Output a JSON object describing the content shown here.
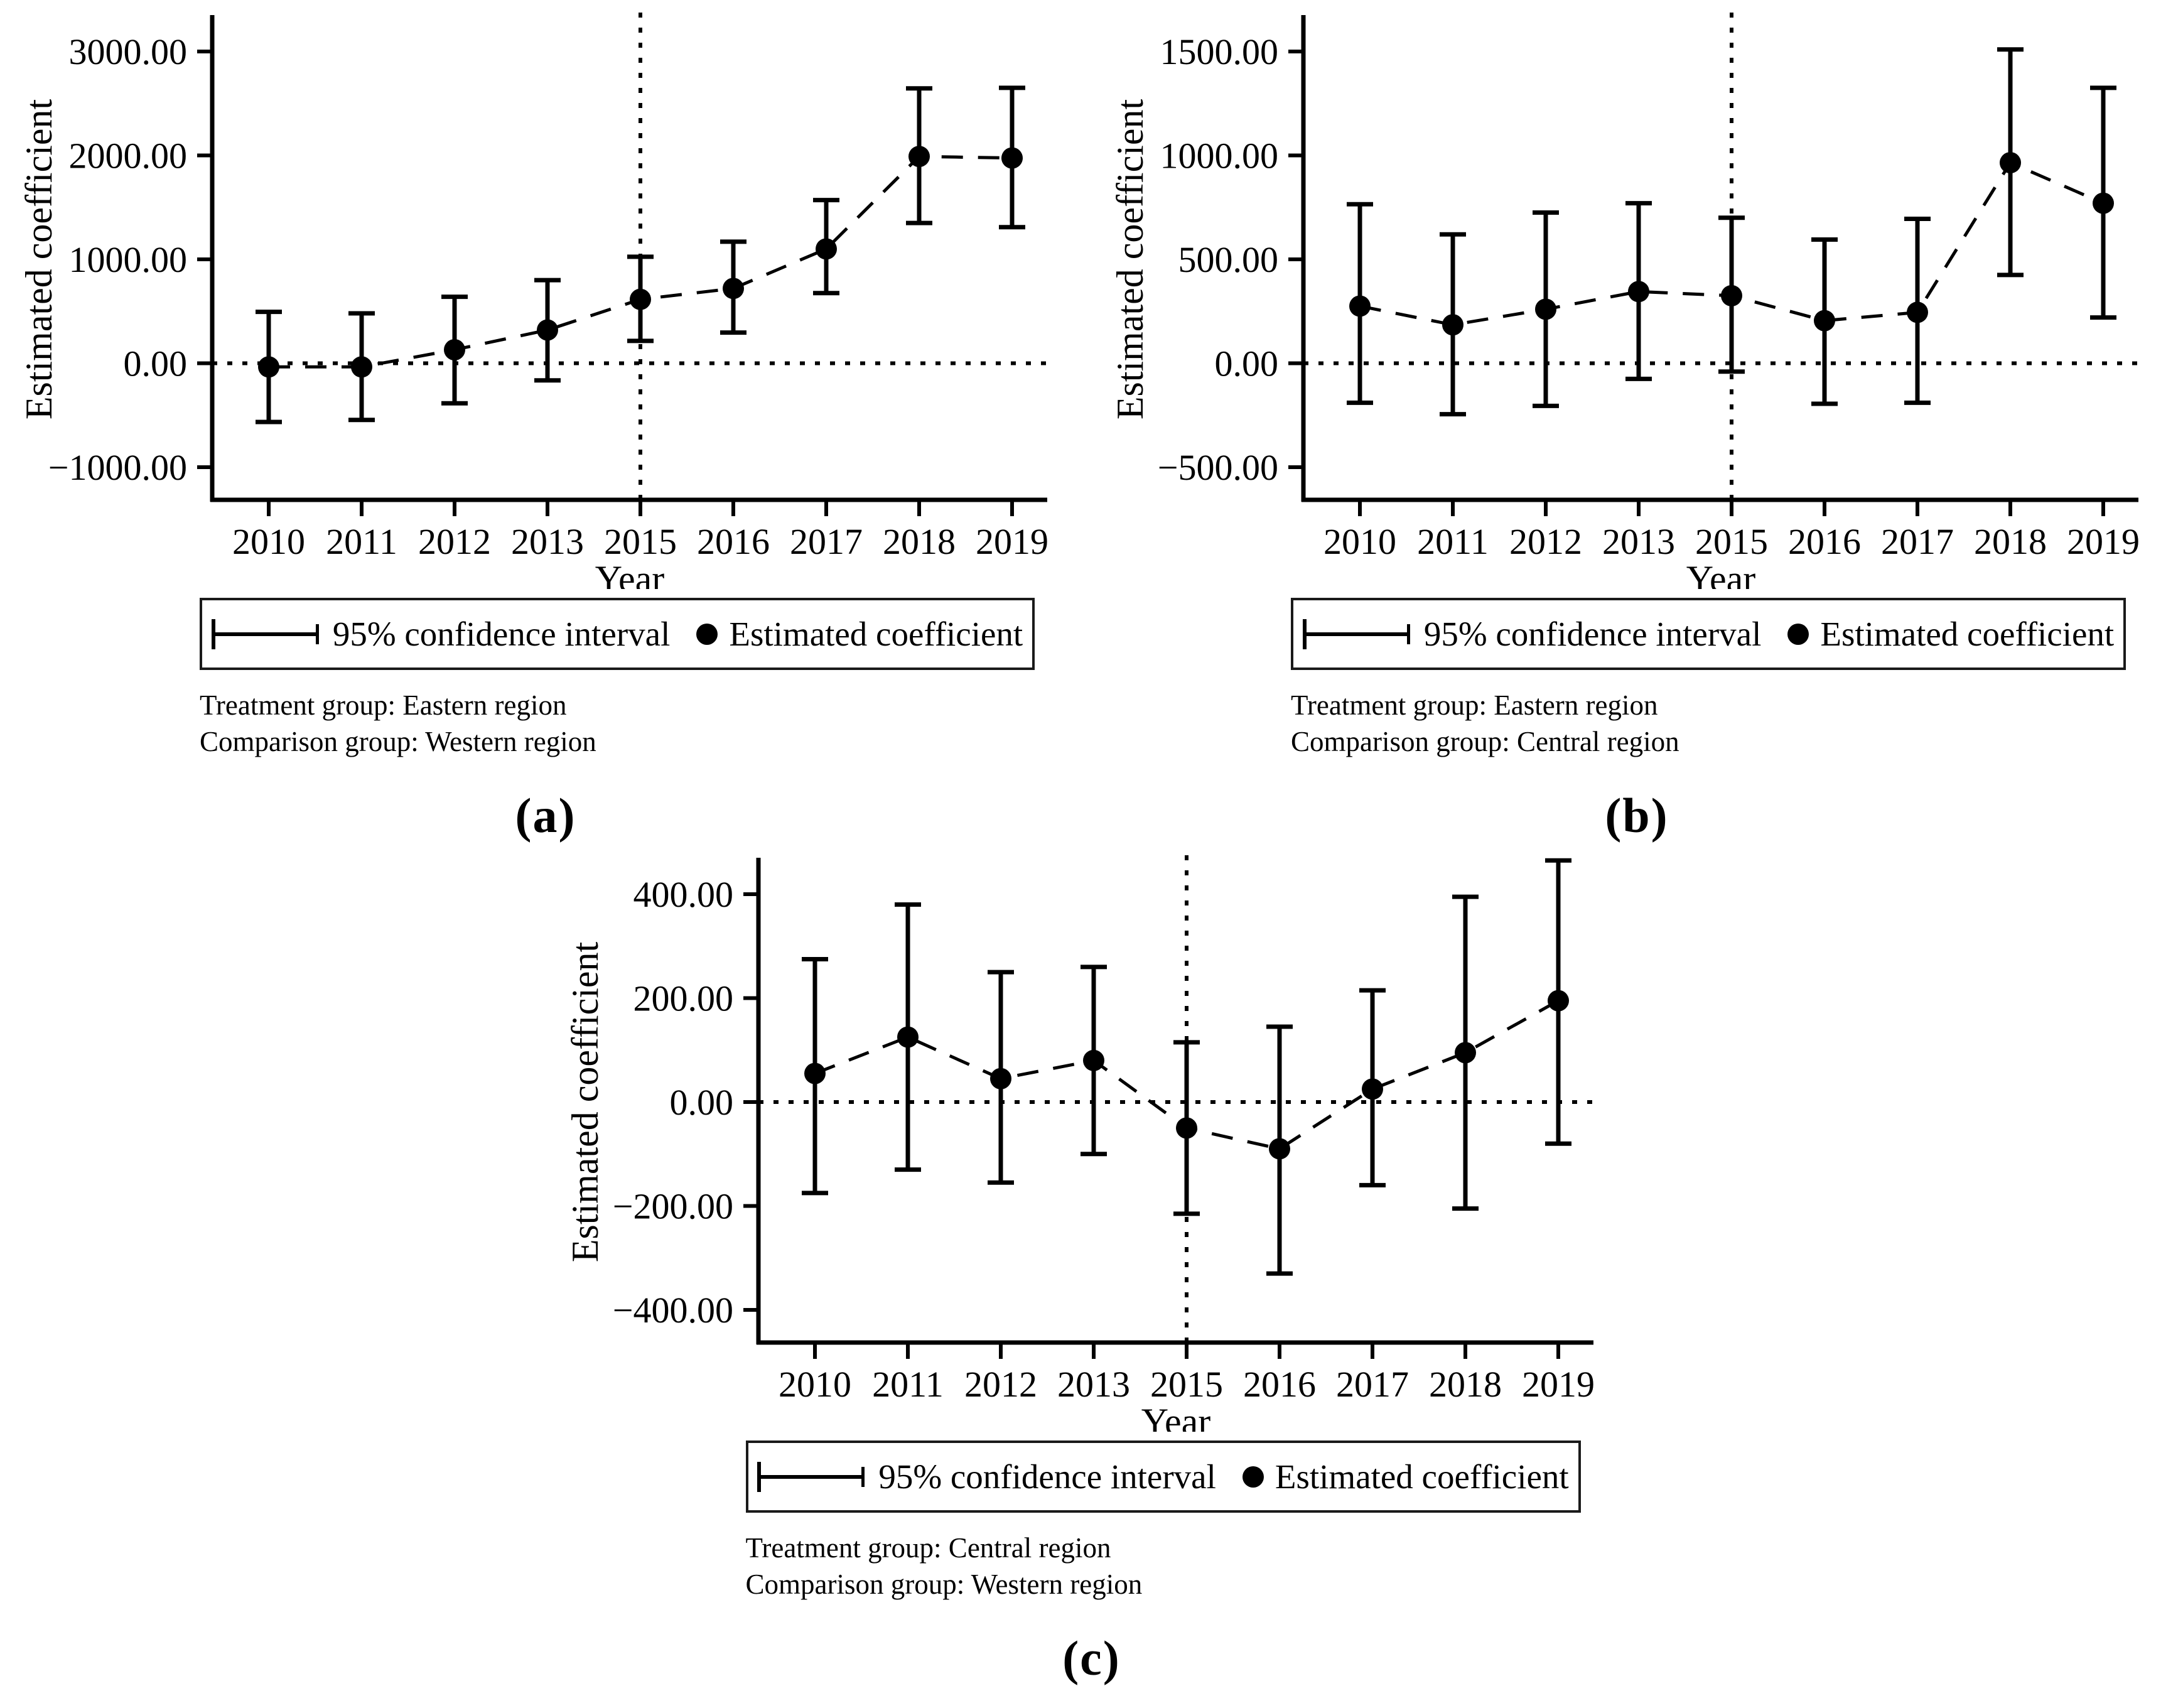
{
  "figure": {
    "legend": {
      "ci_label": "95% confidence interval",
      "estimate_label": "Estimated coefficient"
    }
  },
  "chart_data": {
    "type": "line",
    "style": "dashed line with point estimates and 95% CI error bars",
    "grid": false,
    "shared_categories": [
      "2010",
      "2011",
      "2012",
      "2013",
      "2015",
      "2016",
      "2017",
      "2018",
      "2019"
    ],
    "panels": [
      {
        "panel_label": "(a)",
        "xlabel": "Year",
        "ylabel": "Estimated coefficient",
        "categories": [
          "2010",
          "2011",
          "2012",
          "2013",
          "2015",
          "2016",
          "2017",
          "2018",
          "2019"
        ],
        "reference_year": "2015",
        "yticks": [
          3000,
          2000,
          1000,
          0,
          -1000
        ],
        "ylim": [
          -1000,
          3000
        ],
        "estimates": [
          -35,
          -35,
          130,
          320,
          615,
          720,
          1100,
          1990,
          1975
        ],
        "ci_low": [
          -565,
          -545,
          -385,
          -165,
          215,
          295,
          675,
          1350,
          1310
        ],
        "ci_high": [
          495,
          480,
          640,
          800,
          1025,
          1170,
          1570,
          2645,
          2650
        ],
        "treatment_line": "Treatment group: Eastern region",
        "comparison_line": "Comparison group: Western region"
      },
      {
        "panel_label": "(b)",
        "xlabel": "Year",
        "ylabel": "Estimated coefficient",
        "categories": [
          "2010",
          "2011",
          "2012",
          "2013",
          "2015",
          "2016",
          "2017",
          "2018",
          "2019"
        ],
        "reference_year": "2015",
        "yticks": [
          1500,
          1000,
          500,
          0,
          -500
        ],
        "ylim": [
          -500,
          1500
        ],
        "estimates": [
          275,
          185,
          260,
          345,
          325,
          205,
          245,
          965,
          770
        ],
        "ci_low": [
          -190,
          -245,
          -205,
          -75,
          -40,
          -195,
          -190,
          425,
          220
        ],
        "ci_high": [
          765,
          620,
          725,
          770,
          700,
          595,
          695,
          1510,
          1325
        ],
        "treatment_line": "Treatment group: Eastern region",
        "comparison_line": "Comparison group: Central region"
      },
      {
        "panel_label": "(c)",
        "xlabel": "Year",
        "ylabel": "Estimated coefficient",
        "categories": [
          "2010",
          "2011",
          "2012",
          "2013",
          "2015",
          "2016",
          "2017",
          "2018",
          "2019"
        ],
        "reference_year": "2015",
        "yticks": [
          400,
          200,
          0,
          -200,
          -400
        ],
        "ylim": [
          -400,
          400
        ],
        "estimates": [
          55,
          125,
          45,
          80,
          -50,
          -90,
          25,
          95,
          195
        ],
        "ci_low": [
          -175,
          -130,
          -155,
          -100,
          -215,
          -330,
          -160,
          -205,
          -80
        ],
        "ci_high": [
          275,
          380,
          250,
          260,
          115,
          145,
          215,
          395,
          465
        ],
        "treatment_line": "Treatment group: Central region",
        "comparison_line": "Comparison group: Western region"
      }
    ]
  }
}
